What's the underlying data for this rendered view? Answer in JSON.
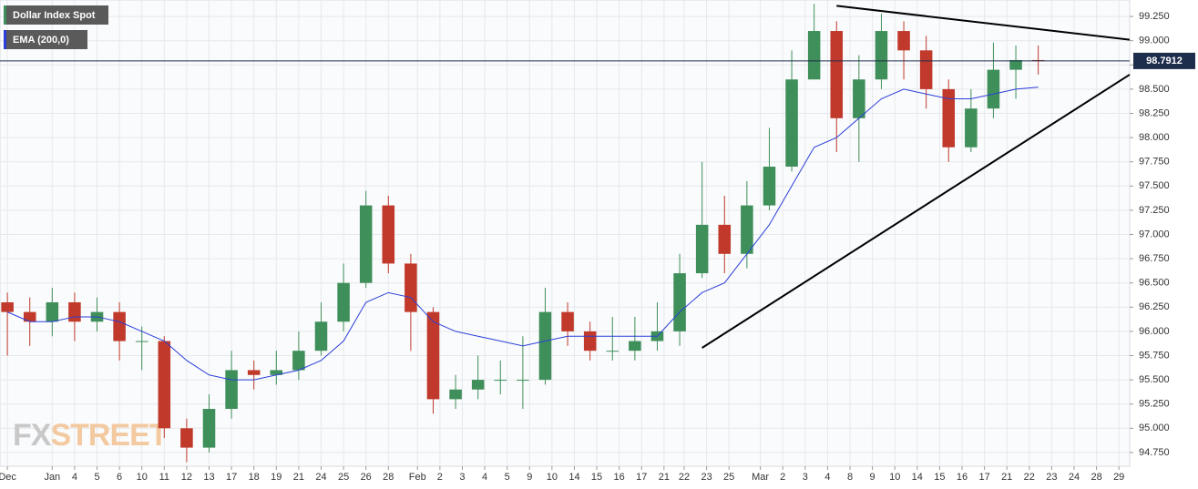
{
  "chart_data": {
    "type": "candlestick",
    "legend": "upper left",
    "grid": true,
    "watermark": [
      "FX",
      "STREET"
    ],
    "xlim": [
      -0.33,
      50.08
    ],
    "ylim": [
      94.58,
      99.42
    ],
    "yticks": [
      {
        "value": 94.75,
        "label": "94.750"
      },
      {
        "value": 95.0,
        "label": "95.000"
      },
      {
        "value": 95.25,
        "label": "95.250"
      },
      {
        "value": 95.5,
        "label": "95.500"
      },
      {
        "value": 95.75,
        "label": "95.750"
      },
      {
        "value": 96.0,
        "label": "96.000"
      },
      {
        "value": 96.25,
        "label": "96.250"
      },
      {
        "value": 96.5,
        "label": "96.500"
      },
      {
        "value": 96.75,
        "label": "96.750"
      },
      {
        "value": 97.0,
        "label": "97.000"
      },
      {
        "value": 97.25,
        "label": "97.250"
      },
      {
        "value": 97.5,
        "label": "97.500"
      },
      {
        "value": 97.75,
        "label": "97.750"
      },
      {
        "value": 98.0,
        "label": "98.000"
      },
      {
        "value": 98.25,
        "label": "98.250"
      },
      {
        "value": 98.5,
        "label": "98.500"
      },
      {
        "value": 98.75,
        "label": "98.750"
      },
      {
        "value": 99.0,
        "label": "99.000"
      },
      {
        "value": 99.25,
        "label": "99.250"
      }
    ],
    "xticks": [
      {
        "value": 0,
        "label": "Dec"
      },
      {
        "value": 2,
        "label": "Jan"
      },
      {
        "value": 3,
        "label": "4"
      },
      {
        "value": 4,
        "label": "5"
      },
      {
        "value": 5,
        "label": "6"
      },
      {
        "value": 6,
        "label": "10"
      },
      {
        "value": 7,
        "label": "11"
      },
      {
        "value": 8,
        "label": "12"
      },
      {
        "value": 9,
        "label": "13"
      },
      {
        "value": 10,
        "label": "17"
      },
      {
        "value": 11,
        "label": "18"
      },
      {
        "value": 12,
        "label": "19"
      },
      {
        "value": 13,
        "label": "21"
      },
      {
        "value": 14,
        "label": "24"
      },
      {
        "value": 15,
        "label": "25"
      },
      {
        "value": 16,
        "label": "26"
      },
      {
        "value": 17,
        "label": "28"
      },
      {
        "value": 18.3,
        "label": "Feb"
      },
      {
        "value": 19.3,
        "label": "2"
      },
      {
        "value": 20.3,
        "label": "3"
      },
      {
        "value": 21.3,
        "label": "4"
      },
      {
        "value": 22.3,
        "label": "5"
      },
      {
        "value": 23.3,
        "label": "9"
      },
      {
        "value": 24.3,
        "label": "10"
      },
      {
        "value": 25.3,
        "label": "14"
      },
      {
        "value": 26.3,
        "label": "15"
      },
      {
        "value": 27.3,
        "label": "16"
      },
      {
        "value": 28.3,
        "label": "17"
      },
      {
        "value": 29.3,
        "label": "21"
      },
      {
        "value": 30.2,
        "label": "22"
      },
      {
        "value": 31.2,
        "label": "23"
      },
      {
        "value": 32.2,
        "label": "25"
      },
      {
        "value": 33.6,
        "label": "Mar"
      },
      {
        "value": 34.6,
        "label": "2"
      },
      {
        "value": 35.6,
        "label": "3"
      },
      {
        "value": 36.6,
        "label": "4"
      },
      {
        "value": 37.6,
        "label": "8"
      },
      {
        "value": 38.6,
        "label": "9"
      },
      {
        "value": 39.6,
        "label": "10"
      },
      {
        "value": 40.6,
        "label": "14"
      },
      {
        "value": 41.6,
        "label": "15"
      },
      {
        "value": 42.6,
        "label": "16"
      },
      {
        "value": 43.6,
        "label": "17"
      },
      {
        "value": 44.6,
        "label": "21"
      },
      {
        "value": 45.6,
        "label": "22"
      },
      {
        "value": 46.6,
        "label": "23"
      },
      {
        "value": 47.6,
        "label": "24"
      },
      {
        "value": 48.6,
        "label": "28"
      },
      {
        "value": 49.6,
        "label": "29"
      }
    ],
    "last_price": 98.7912,
    "series": [
      {
        "name": "Dollar Index Spot",
        "type": "candlestick",
        "color": "#3f8f5a",
        "up_color": "#3f8f5a",
        "down_color": "#c0392b",
        "x": [
          0,
          1,
          2,
          3,
          4,
          5,
          6,
          7,
          8,
          9,
          10,
          11,
          12,
          13,
          14,
          15,
          16,
          17,
          18,
          19,
          20,
          21,
          22,
          23,
          24,
          25,
          26,
          27,
          28,
          29,
          30,
          31,
          32,
          33,
          34,
          35,
          36,
          37,
          38,
          39,
          40,
          41,
          42,
          43,
          44,
          45,
          46
        ],
        "open": [
          96.3,
          96.2,
          96.1,
          96.3,
          96.1,
          96.2,
          95.9,
          95.9,
          95.0,
          94.8,
          95.2,
          95.6,
          95.55,
          95.6,
          95.8,
          96.1,
          96.5,
          97.3,
          96.7,
          96.2,
          95.3,
          95.4,
          95.5,
          95.5,
          95.5,
          96.2,
          96.0,
          95.8,
          95.8,
          95.9,
          96.0,
          96.6,
          97.1,
          96.8,
          97.3,
          97.7,
          98.6,
          99.1,
          98.2,
          98.6,
          99.1,
          98.9,
          98.5,
          97.9,
          98.3,
          98.7,
          98.8
        ],
        "high": [
          96.4,
          96.35,
          96.45,
          96.4,
          96.35,
          96.3,
          96.05,
          95.95,
          95.1,
          95.35,
          95.8,
          95.7,
          95.8,
          96.0,
          96.3,
          96.7,
          97.45,
          97.4,
          96.8,
          96.25,
          95.55,
          95.75,
          95.7,
          95.95,
          96.45,
          96.3,
          96.1,
          96.15,
          96.15,
          96.3,
          96.8,
          97.75,
          97.4,
          97.55,
          98.1,
          98.9,
          99.38,
          99.2,
          98.85,
          99.28,
          99.2,
          99.05,
          98.6,
          98.5,
          98.98,
          98.95,
          98.95
        ],
        "low": [
          95.75,
          95.85,
          95.95,
          95.9,
          96.0,
          95.7,
          95.6,
          94.9,
          94.65,
          94.75,
          95.1,
          95.4,
          95.45,
          95.5,
          95.75,
          96.0,
          96.45,
          96.6,
          95.8,
          95.15,
          95.2,
          95.3,
          95.35,
          95.2,
          95.45,
          95.85,
          95.7,
          95.7,
          95.7,
          95.8,
          95.85,
          96.55,
          96.6,
          96.65,
          97.25,
          97.65,
          98.6,
          97.85,
          97.75,
          98.5,
          98.6,
          98.3,
          97.75,
          97.85,
          98.2,
          98.4,
          98.65
        ],
        "close": [
          96.2,
          96.1,
          96.3,
          96.1,
          96.2,
          95.9,
          95.9,
          95.0,
          94.8,
          95.2,
          95.6,
          95.55,
          95.6,
          95.8,
          96.1,
          96.5,
          97.3,
          96.7,
          96.2,
          95.3,
          95.4,
          95.5,
          95.5,
          95.5,
          96.2,
          96.0,
          95.8,
          95.8,
          95.9,
          96.0,
          96.6,
          97.1,
          96.8,
          97.3,
          97.7,
          98.6,
          99.1,
          98.2,
          98.6,
          99.1,
          98.9,
          98.5,
          97.9,
          98.3,
          98.7,
          98.8,
          98.79
        ]
      },
      {
        "name": "EMA (200,0)",
        "type": "line",
        "color": "#2a3fd8",
        "x": [
          0,
          1,
          2,
          3,
          4,
          5,
          6,
          7,
          8,
          9,
          10,
          11,
          12,
          13,
          14,
          15,
          16,
          17,
          18,
          19,
          20,
          21,
          22,
          23,
          24,
          25,
          26,
          27,
          28,
          29,
          30,
          31,
          32,
          33,
          34,
          35,
          36,
          37,
          38,
          39,
          40,
          41,
          42,
          43,
          44,
          45,
          46
        ],
        "values": [
          96.2,
          96.1,
          96.1,
          96.15,
          96.15,
          96.1,
          96.0,
          95.9,
          95.7,
          95.55,
          95.5,
          95.5,
          95.55,
          95.6,
          95.7,
          95.9,
          96.3,
          96.4,
          96.35,
          96.1,
          96.0,
          95.95,
          95.9,
          95.85,
          95.9,
          95.95,
          95.95,
          95.95,
          95.95,
          95.95,
          96.2,
          96.4,
          96.5,
          96.8,
          97.1,
          97.5,
          97.9,
          98.0,
          98.2,
          98.4,
          98.5,
          98.45,
          98.4,
          98.4,
          98.45,
          98.5,
          98.52
        ]
      }
    ],
    "trendlines": [
      {
        "color": "#000000",
        "x": [
          37.0,
          50.08
        ],
        "y": [
          99.36,
          99.01
        ]
      },
      {
        "color": "#000000",
        "x": [
          31.0,
          50.08
        ],
        "y": [
          95.83,
          98.65
        ]
      }
    ]
  }
}
